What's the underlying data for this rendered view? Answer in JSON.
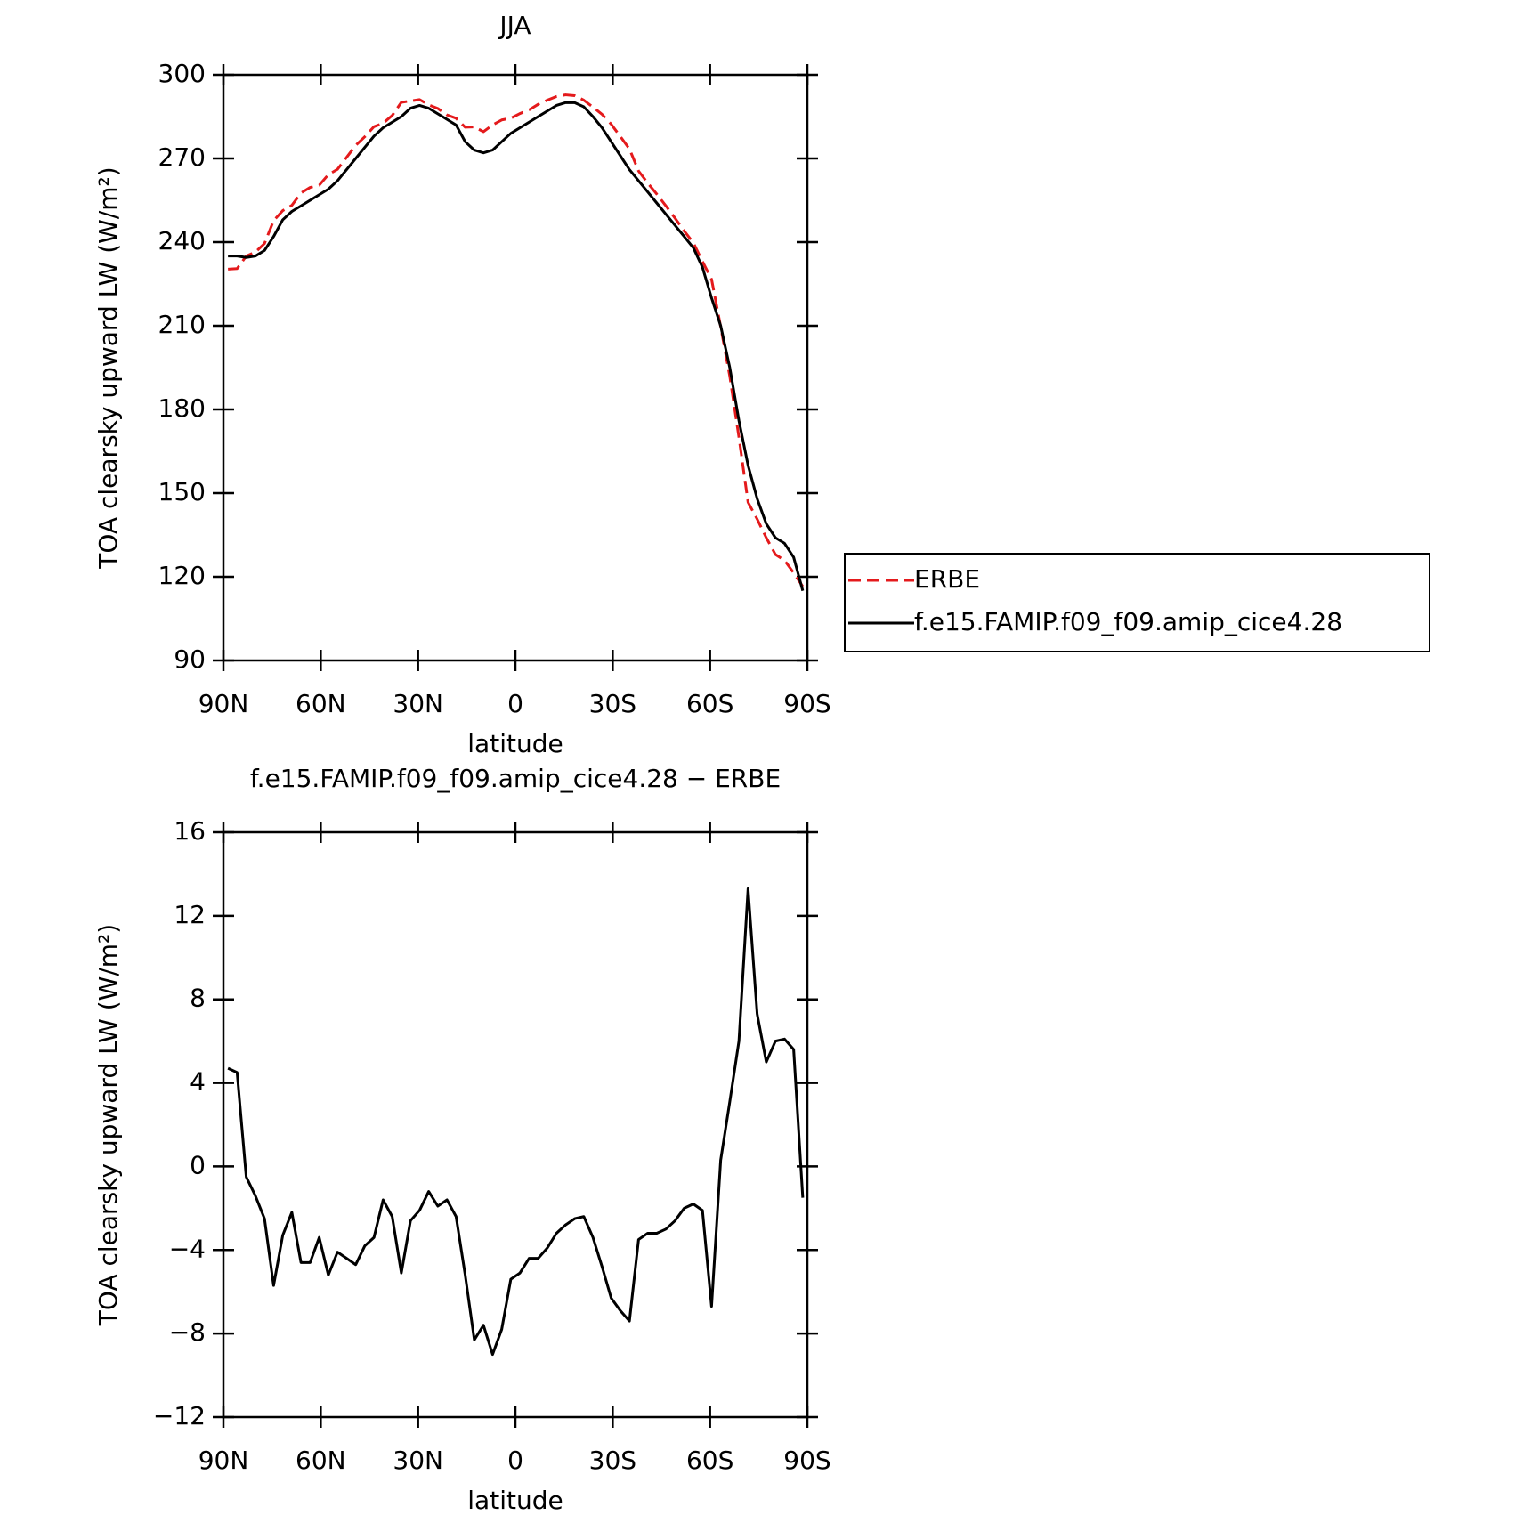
{
  "chart_data": [
    {
      "type": "line",
      "title": "JJA",
      "xlabel": "latitude",
      "ylabel": "TOA clearsky upward LW (W/m²)",
      "x": [
        88.59,
        85.78,
        82.97,
        80.16,
        77.34,
        74.53,
        71.72,
        68.91,
        66.09,
        63.28,
        60.47,
        57.66,
        54.84,
        52.03,
        49.22,
        46.41,
        43.59,
        40.78,
        37.97,
        35.16,
        32.34,
        29.53,
        26.72,
        23.91,
        21.09,
        18.28,
        15.47,
        12.66,
        9.84,
        7.03,
        4.22,
        1.41,
        -1.41,
        -4.22,
        -7.03,
        -9.84,
        -12.66,
        -15.47,
        -18.28,
        -21.09,
        -23.91,
        -26.72,
        -29.53,
        -32.34,
        -35.16,
        -37.97,
        -40.78,
        -43.59,
        -46.41,
        -49.22,
        -52.03,
        -54.84,
        -57.66,
        -60.47,
        -63.28,
        -66.09,
        -68.91,
        -71.72,
        -74.53,
        -77.34,
        -80.16,
        -82.97,
        -85.78,
        -88.59
      ],
      "series": [
        {
          "name": "ERBE",
          "color": "#e41a1c",
          "dash": true,
          "values": [
            230.3,
            230.5,
            235,
            236.4,
            239.5,
            247.7,
            251.3,
            253.2,
            257.6,
            259.6,
            260.4,
            264.2,
            266.1,
            270.4,
            274.7,
            277.8,
            281.4,
            282.6,
            285.4,
            290.1,
            290.6,
            291.1,
            289.2,
            287.9,
            285.6,
            284.4,
            281.2,
            281.3,
            279.6,
            282,
            283.8,
            284.4,
            286.1,
            287.4,
            289.4,
            290.9,
            292.2,
            292.8,
            292.5,
            290.9,
            288.4,
            285.8,
            282.3,
            277.9,
            273.4,
            265.5,
            261.2,
            257.2,
            253,
            248.6,
            244,
            239.8,
            233.1,
            226.7,
            209.7,
            191.9,
            170,
            146.7,
            140.7,
            134,
            128,
            125.9,
            121.4,
            116.5
          ]
        },
        {
          "name": "f.e15.FAMIP.f09_f09.amip_cice4.28",
          "color": "#000000",
          "dash": false,
          "values": [
            235,
            235,
            234.5,
            235,
            237,
            242,
            248,
            251,
            253,
            255,
            257,
            259,
            262,
            266,
            270,
            274,
            278,
            281,
            283,
            285,
            288,
            289,
            288,
            286,
            284,
            282,
            276,
            273,
            272,
            273,
            276,
            279,
            281,
            283,
            285,
            287,
            289,
            290,
            290,
            288.5,
            285,
            281,
            276,
            271,
            266,
            262,
            258,
            254,
            250,
            246,
            242,
            238,
            231,
            220,
            210,
            195,
            176,
            160,
            148,
            139,
            134,
            132,
            127,
            115
          ]
        }
      ],
      "xlim": [
        90,
        -90
      ],
      "xticks": [
        {
          "value": 90,
          "label": "90N"
        },
        {
          "value": 60,
          "label": "60N"
        },
        {
          "value": 30,
          "label": "30N"
        },
        0,
        {
          "value": -30,
          "label": "30S"
        },
        {
          "value": -60,
          "label": "60S"
        },
        {
          "value": -90,
          "label": "90S"
        }
      ],
      "ylim": [
        90,
        300
      ],
      "yticks": [
        90,
        120,
        150,
        180,
        210,
        240,
        270,
        300
      ],
      "legend": "right"
    },
    {
      "type": "line",
      "title": "f.e15.FAMIP.f09_f09.amip_cice4.28 − ERBE",
      "xlabel": "latitude",
      "ylabel": "TOA clearsky upward LW (W/m²)",
      "x": [
        88.59,
        85.78,
        82.97,
        80.16,
        77.34,
        74.53,
        71.72,
        68.91,
        66.09,
        63.28,
        60.47,
        57.66,
        54.84,
        52.03,
        49.22,
        46.41,
        43.59,
        40.78,
        37.97,
        35.16,
        32.34,
        29.53,
        26.72,
        23.91,
        21.09,
        18.28,
        15.47,
        12.66,
        9.84,
        7.03,
        4.22,
        1.41,
        -1.41,
        -4.22,
        -7.03,
        -9.84,
        -12.66,
        -15.47,
        -18.28,
        -21.09,
        -23.91,
        -26.72,
        -29.53,
        -32.34,
        -35.16,
        -37.97,
        -40.78,
        -43.59,
        -46.41,
        -49.22,
        -52.03,
        -54.84,
        -57.66,
        -60.47,
        -63.28,
        -66.09,
        -68.91,
        -71.72,
        -74.53,
        -77.34,
        -80.16,
        -82.97,
        -85.78,
        -88.59
      ],
      "series": [
        {
          "color": "#000000",
          "dash": false,
          "values": [
            4.7,
            4.5,
            -0.5,
            -1.4,
            -2.5,
            -5.7,
            -3.3,
            -2.2,
            -4.6,
            -4.6,
            -3.4,
            -5.2,
            -4.1,
            -4.4,
            -4.7,
            -3.8,
            -3.4,
            -1.6,
            -2.4,
            -5.1,
            -2.6,
            -2.1,
            -1.2,
            -1.9,
            -1.6,
            -2.4,
            -5.2,
            -8.3,
            -7.6,
            -9.0,
            -7.8,
            -5.4,
            -5.1,
            -4.4,
            -4.4,
            -3.9,
            -3.2,
            -2.8,
            -2.5,
            -2.4,
            -3.4,
            -4.8,
            -6.3,
            -6.9,
            -7.4,
            -3.5,
            -3.2,
            -3.2,
            -3.0,
            -2.6,
            -2.0,
            -1.8,
            -2.1,
            -6.7,
            0.3,
            3.1,
            6.0,
            13.3,
            7.3,
            5.0,
            6.0,
            6.1,
            5.6,
            -1.5
          ]
        }
      ],
      "xlim": [
        90,
        -90
      ],
      "xticks": [
        {
          "value": 90,
          "label": "90N"
        },
        {
          "value": 60,
          "label": "60N"
        },
        {
          "value": 30,
          "label": "30N"
        },
        0,
        {
          "value": -30,
          "label": "30S"
        },
        {
          "value": -60,
          "label": "60S"
        },
        {
          "value": -90,
          "label": "90S"
        }
      ],
      "ylim": [
        -12,
        16
      ],
      "yticks": [
        {
          "value": -12,
          "label": "−12"
        },
        {
          "value": -8,
          "label": "−8"
        },
        {
          "value": -4,
          "label": "−4"
        },
        0,
        4,
        8,
        12,
        16
      ]
    }
  ]
}
